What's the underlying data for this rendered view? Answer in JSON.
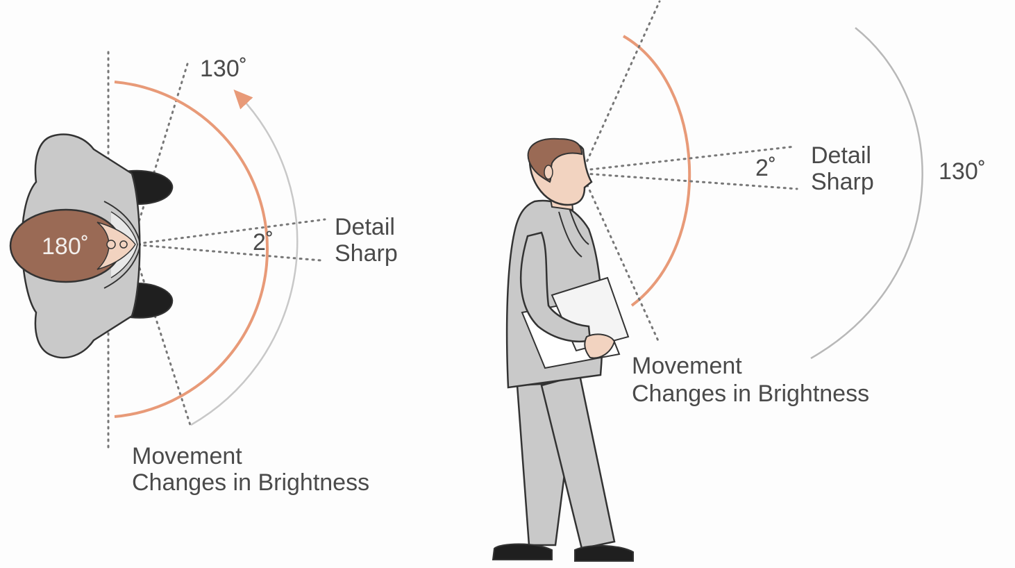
{
  "top_view": {
    "peripheral_angle": "130˚",
    "full_angle": "180˚",
    "central_angle": "2˚",
    "central_label_line1": "Detail",
    "central_label_line2": "Sharp",
    "peripheral_label_line1": "Movement",
    "peripheral_label_line2": "Changes in Brightness"
  },
  "side_view": {
    "central_angle": "2˚",
    "central_label_line1": "Detail",
    "central_label_line2": "Sharp",
    "peripheral_angle": "130˚",
    "peripheral_label_line1": "Movement",
    "peripheral_label_line2": "Changes in Brightness"
  },
  "colors": {
    "arc_orange": "#e89a78",
    "arc_gray": "#b8b8b8",
    "suit": "#c9c9c9",
    "outline": "#333333",
    "hair": "#9a6a55",
    "skin": "#f2d3c0",
    "shoe": "#1f1f1f",
    "text": "#4a4a4a"
  },
  "icons": [
    "top-view-person-icon",
    "walking-person-icon",
    "folder-icon",
    "arrow-icon"
  ]
}
